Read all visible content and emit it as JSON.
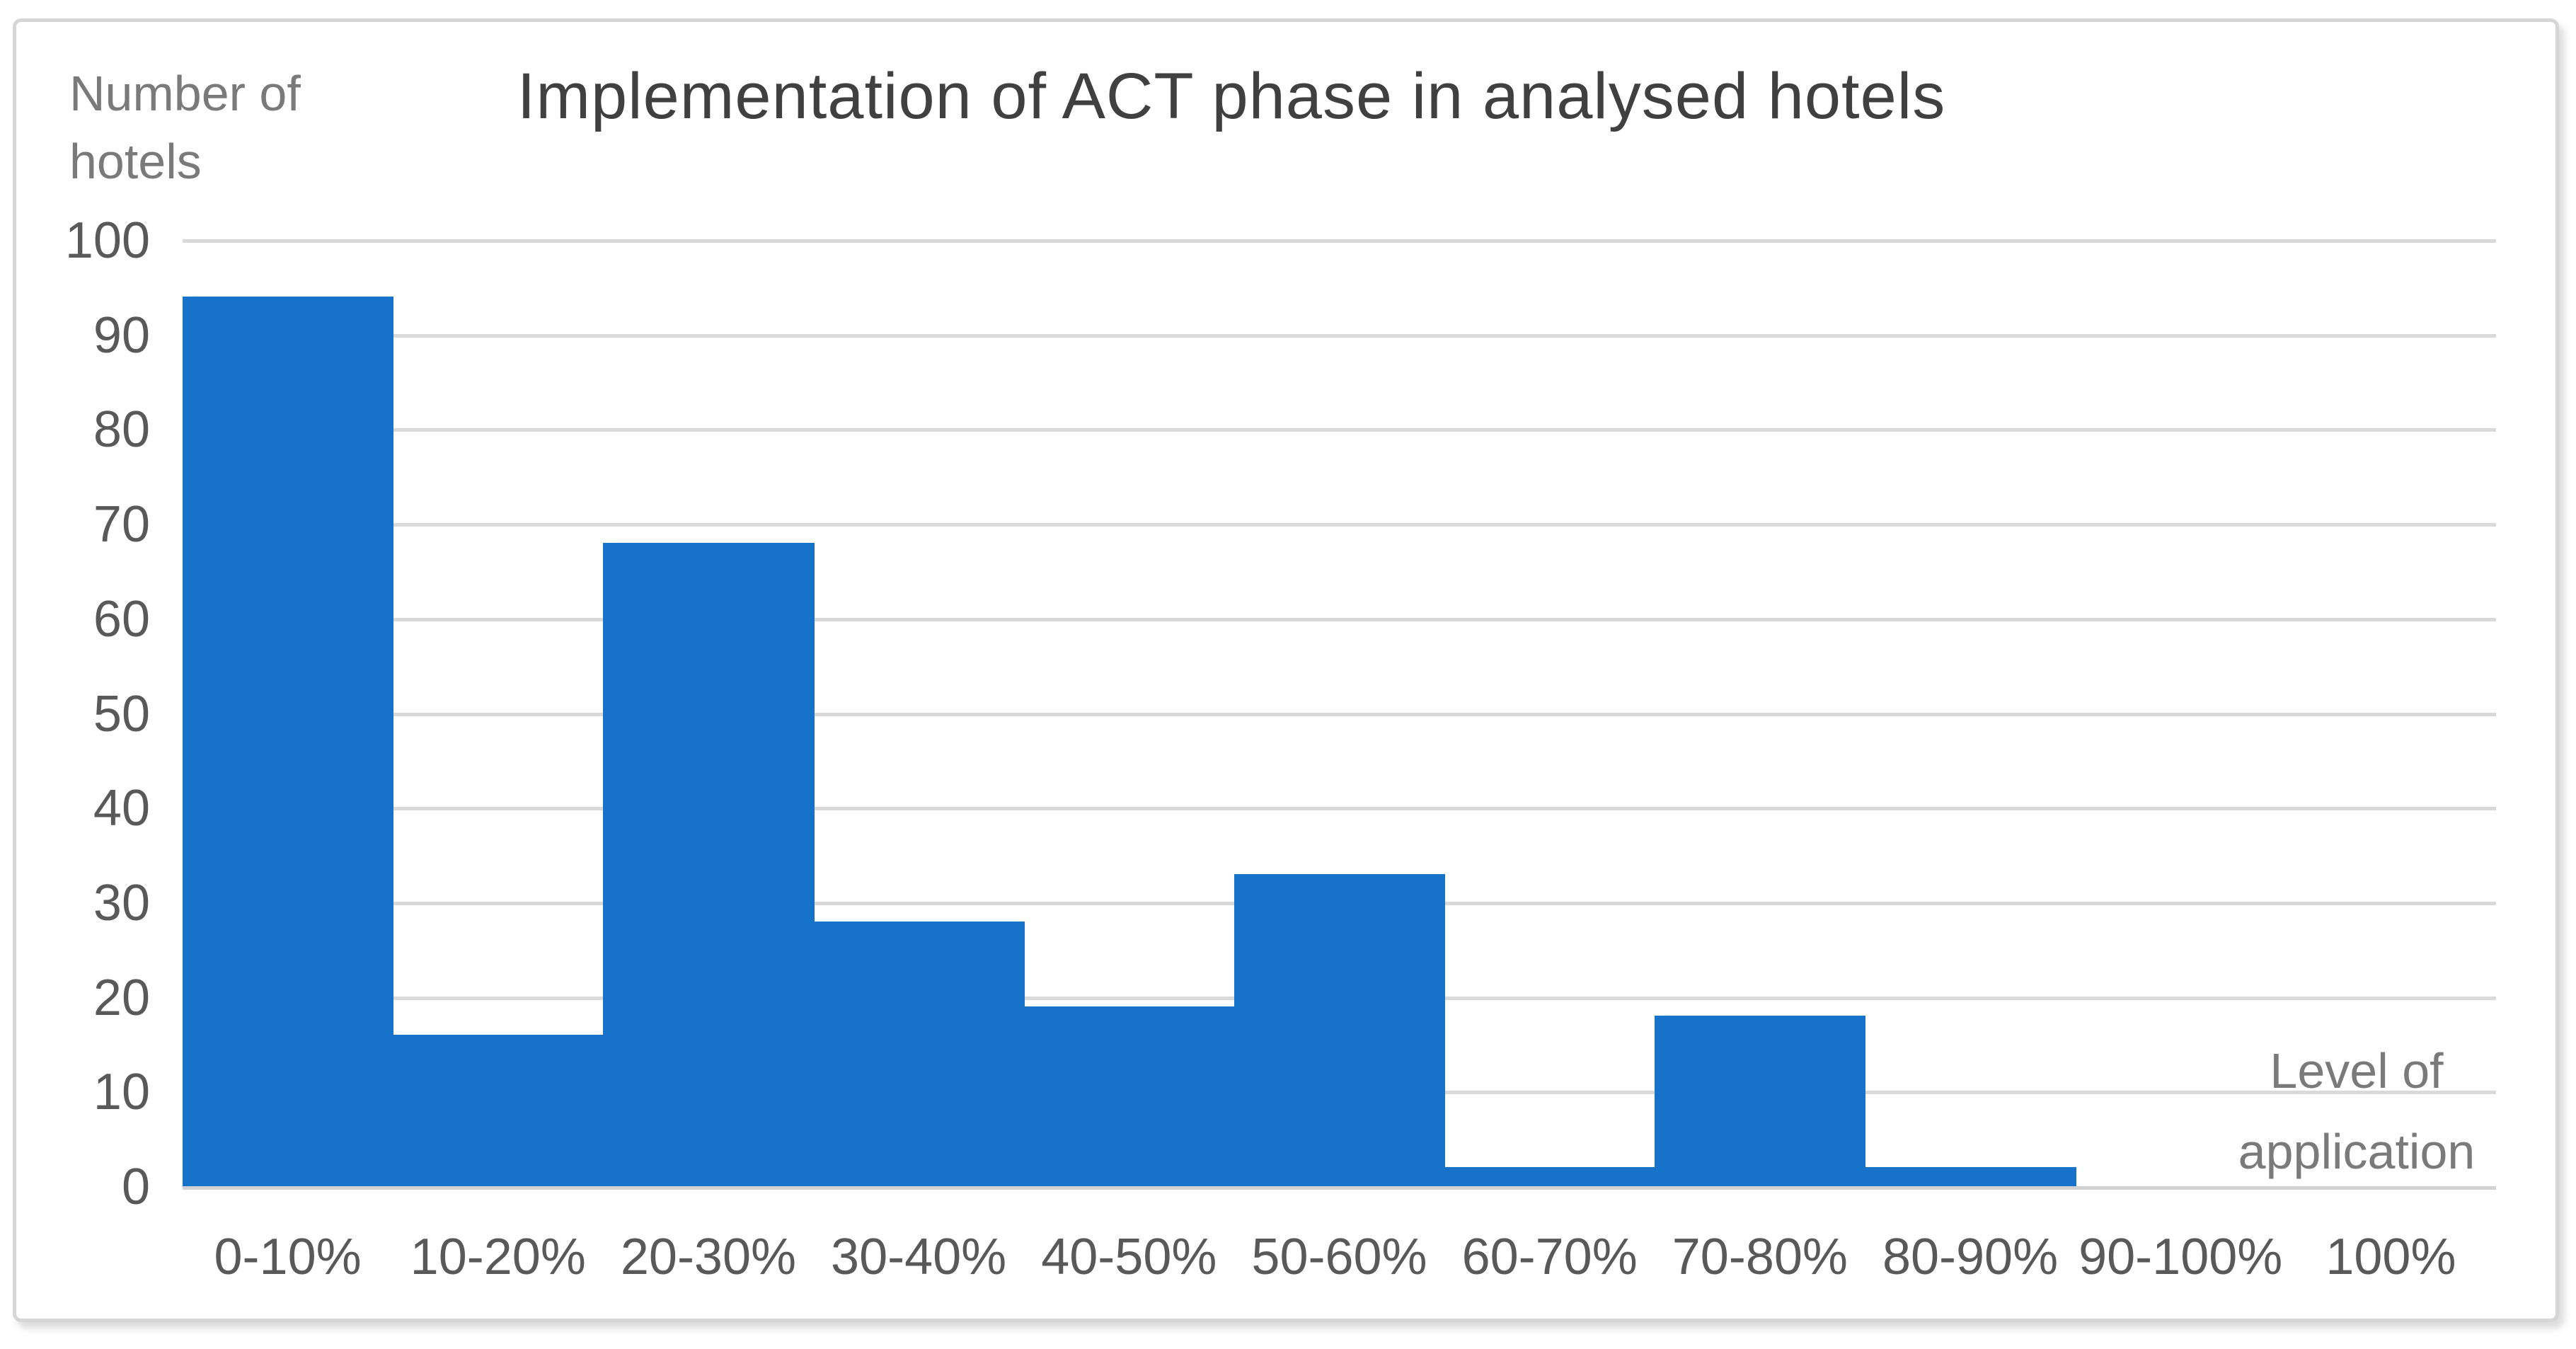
{
  "chart_data": {
    "type": "bar",
    "title": "Implementation of ACT phase in analysed hotels",
    "y_axis_title_lines": [
      "Number of",
      "hotels"
    ],
    "x_axis_title_lines": [
      "Level of",
      "application"
    ],
    "categories": [
      "0-10%",
      "10-20%",
      "20-30%",
      "30-40%",
      "40-50%",
      "50-60%",
      "60-70%",
      "70-80%",
      "80-90%",
      "90-100%",
      "100%"
    ],
    "values": [
      94,
      16,
      68,
      28,
      19,
      33,
      2,
      18,
      2,
      0,
      0
    ],
    "ylim": [
      0,
      100
    ],
    "ytick_step": 10,
    "ytick_labels": [
      "0",
      "10",
      "20",
      "30",
      "40",
      "50",
      "60",
      "70",
      "80",
      "90",
      "100"
    ],
    "grid": "horizontal-only",
    "legend": "none",
    "colors": {
      "bar": "#1772c9",
      "gridline": "#d9d9d9",
      "axis_line": "#d2d2d2",
      "tick_label": "#595959",
      "title": "#404040",
      "axis_title": "#7a7a7a",
      "frame_border": "#d6d6d6"
    }
  }
}
